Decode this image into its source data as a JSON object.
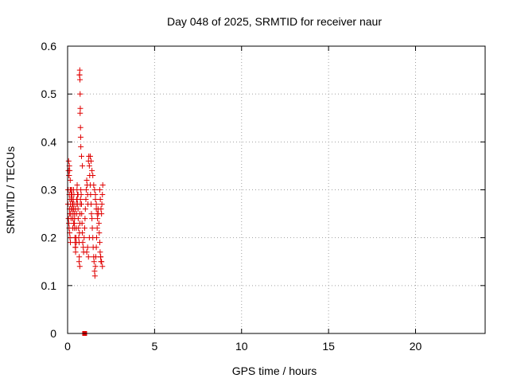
{
  "chart_data": {
    "type": "scatter",
    "title": "Day 048 of 2025, SRMTID for receiver naur",
    "xlabel": "GPS time / hours",
    "ylabel": "SRMTID / TECUs",
    "xlim": [
      0,
      24
    ],
    "ylim": [
      0,
      0.6
    ],
    "xticks": [
      0,
      5,
      10,
      15,
      20
    ],
    "xtick_labels": [
      "0",
      "5",
      "10",
      "15",
      "20"
    ],
    "yticks": [
      0,
      0.1,
      0.2,
      0.3,
      0.4,
      0.5,
      0.6
    ],
    "ytick_labels": [
      "0",
      "0.1",
      "0.2",
      "0.3",
      "0.4",
      "0.5",
      "0.6"
    ],
    "grid": true,
    "marker_color": "#e00000",
    "series": [
      {
        "name": "SRMTID",
        "marker": "plus",
        "x": [
          0.02,
          0.03,
          0.05,
          0.06,
          0.08,
          0.1,
          0.11,
          0.12,
          0.13,
          0.15,
          0.16,
          0.18,
          0.2,
          0.21,
          0.22,
          0.24,
          0.25,
          0.27,
          0.28,
          0.3,
          0.31,
          0.33,
          0.34,
          0.36,
          0.37,
          0.39,
          0.4,
          0.42,
          0.43,
          0.45,
          0.46,
          0.48,
          0.5,
          0.51,
          0.52,
          0.54,
          0.55,
          0.57,
          0.58,
          0.6,
          0.61,
          0.63,
          0.64,
          0.66,
          0.68,
          0.7,
          0.71,
          0.73,
          0.74,
          0.76,
          0.78,
          0.8,
          0.81,
          0.83,
          0.85,
          0.87,
          0.9,
          0.92,
          0.95,
          0.98,
          1.0,
          1.02,
          1.05,
          1.07,
          1.1,
          1.12,
          1.15,
          1.17,
          1.2,
          1.22,
          1.25,
          1.27,
          1.3,
          1.32,
          1.35,
          1.37,
          1.4,
          1.42,
          1.45,
          1.47,
          1.5,
          1.52,
          1.55,
          1.57,
          1.6,
          1.62,
          1.65,
          1.67,
          1.7,
          1.72,
          1.75,
          1.77,
          1.8,
          1.82,
          1.85,
          1.87,
          1.9,
          1.92,
          1.95,
          1.97,
          2.0,
          2.02,
          0.69,
          0.7,
          0.71,
          0.72,
          0.73,
          0.74,
          0.75,
          0.76,
          0.68,
          0.72,
          0.8,
          0.85,
          1.3,
          1.35,
          1.4,
          1.45,
          1.5,
          1.55,
          1.6,
          1.6,
          1.65,
          1.65,
          1.7,
          0.66,
          0.67,
          0.7,
          0.08,
          0.1,
          0.12,
          0.15,
          0.18,
          0.2,
          0.25,
          0.3,
          0.35,
          0.4,
          0.45,
          0.5,
          0.55,
          0.6,
          0.05,
          0.07,
          0.09,
          0.12,
          0.14,
          0.16,
          0.3,
          0.35,
          0.4,
          0.45,
          0.5,
          1.1,
          1.15,
          1.2,
          1.25,
          1.9,
          1.95,
          2.0,
          1.85,
          1.88,
          1.92
        ],
        "y": [
          0.27,
          0.3,
          0.34,
          0.36,
          0.33,
          0.29,
          0.26,
          0.25,
          0.28,
          0.3,
          0.27,
          0.25,
          0.24,
          0.26,
          0.28,
          0.3,
          0.29,
          0.27,
          0.26,
          0.24,
          0.25,
          0.28,
          0.3,
          0.29,
          0.27,
          0.23,
          0.22,
          0.2,
          0.19,
          0.18,
          0.17,
          0.2,
          0.22,
          0.25,
          0.28,
          0.3,
          0.31,
          0.29,
          0.27,
          0.26,
          0.24,
          0.22,
          0.2,
          0.19,
          0.21,
          0.23,
          0.25,
          0.27,
          0.28,
          0.3,
          0.29,
          0.27,
          0.25,
          0.23,
          0.21,
          0.19,
          0.18,
          0.17,
          0.2,
          0.22,
          0.24,
          0.26,
          0.28,
          0.3,
          0.32,
          0.31,
          0.29,
          0.27,
          0.36,
          0.37,
          0.35,
          0.33,
          0.31,
          0.29,
          0.27,
          0.25,
          0.24,
          0.22,
          0.2,
          0.18,
          0.16,
          0.15,
          0.13,
          0.12,
          0.14,
          0.16,
          0.18,
          0.2,
          0.22,
          0.24,
          0.26,
          0.25,
          0.23,
          0.21,
          0.19,
          0.17,
          0.16,
          0.15,
          0.25,
          0.27,
          0.29,
          0.31,
          0.54,
          0.55,
          0.53,
          0.5,
          0.47,
          0.43,
          0.41,
          0.39,
          0.54,
          0.46,
          0.37,
          0.35,
          0.37,
          0.36,
          0.34,
          0.33,
          0.31,
          0.3,
          0.29,
          0.28,
          0.27,
          0.26,
          0.25,
          0.15,
          0.16,
          0.14,
          0.33,
          0.35,
          0.34,
          0.32,
          0.3,
          0.29,
          0.28,
          0.27,
          0.26,
          0.25,
          0.26,
          0.27,
          0.28,
          0.29,
          0.24,
          0.23,
          0.22,
          0.21,
          0.2,
          0.19,
          0.22,
          0.23,
          0.24,
          0.18,
          0.19,
          0.17,
          0.18,
          0.16,
          0.2,
          0.16,
          0.15,
          0.14,
          0.3,
          0.28,
          0.26
        ]
      },
      {
        "name": "zero",
        "marker": "square",
        "x": [
          0.98
        ],
        "y": [
          0.0
        ]
      }
    ]
  }
}
